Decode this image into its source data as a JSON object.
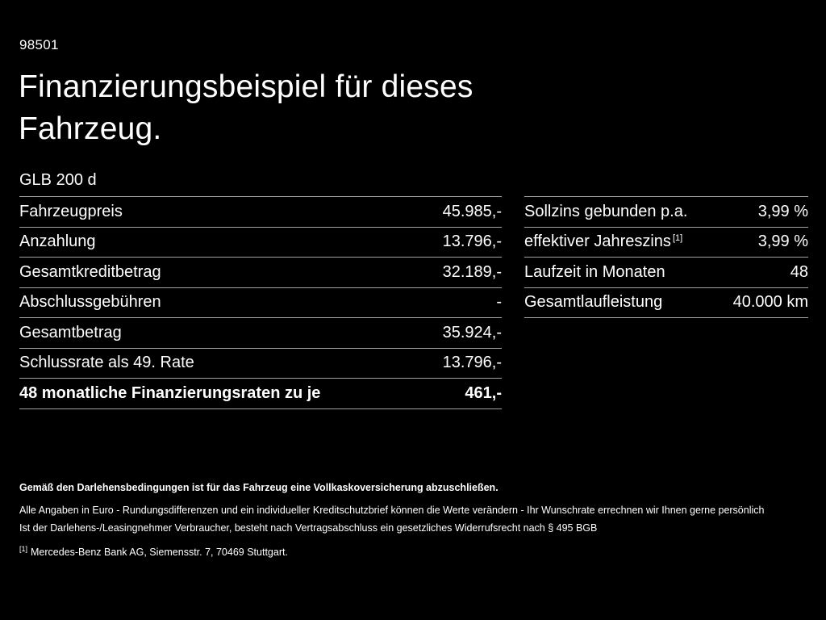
{
  "page": {
    "doc_number": "98501",
    "title_line1": "Finanzierungsbeispiel für dieses",
    "title_line2": "Fahrzeug.",
    "model": "GLB 200 d"
  },
  "left_table": {
    "rows": [
      {
        "label": "Fahrzeugpreis",
        "value": "45.985,-"
      },
      {
        "label": "Anzahlung",
        "value": "13.796,-"
      },
      {
        "label": "Gesamtkreditbetrag",
        "value": "32.189,-"
      },
      {
        "label": "Abschlussgebühren",
        "value": "-"
      },
      {
        "label": "Gesamtbetrag",
        "value": "35.924,-"
      },
      {
        "label": "Schlussrate als 49. Rate",
        "value": "13.796,-"
      },
      {
        "label": "48 monatliche Finanzierungsraten zu je",
        "value": "461,-"
      }
    ]
  },
  "right_table": {
    "rows": [
      {
        "label": "Sollzins gebunden p.a.",
        "sup": "",
        "value": "3,99 %"
      },
      {
        "label": "effektiver Jahreszins",
        "sup": "[1]",
        "value": "3,99 %"
      },
      {
        "label": "Laufzeit in Monaten",
        "sup": "",
        "value": "48"
      },
      {
        "label": "Gesamtlaufleistung",
        "sup": "",
        "value": "40.000 km"
      }
    ]
  },
  "footer": {
    "bold_note": "Gemäß den Darlehensbedingungen ist für das Fahrzeug eine Vollkaskoversicherung abzuschließen.",
    "note_line1": "Alle Angaben in Euro - Rundungsdifferenzen und ein individueller Kreditschutzbrief können die Werte verändern - Ihr Wunschrate errechnen wir Ihnen gerne persönlich",
    "note_line2": "Ist der Darlehens-/Leasingnehmer Verbraucher, besteht nach Vertragsabschluss ein gesetzliches Widerrufsrecht nach § 495 BGB",
    "footnote_marker": "[1]",
    "footnote_text": "Mercedes-Benz Bank AG, Siemensstr. 7, 70469 Stuttgart."
  },
  "colors": {
    "background": "#000000",
    "text": "#ffffff",
    "divider": "#a3a3a3"
  }
}
